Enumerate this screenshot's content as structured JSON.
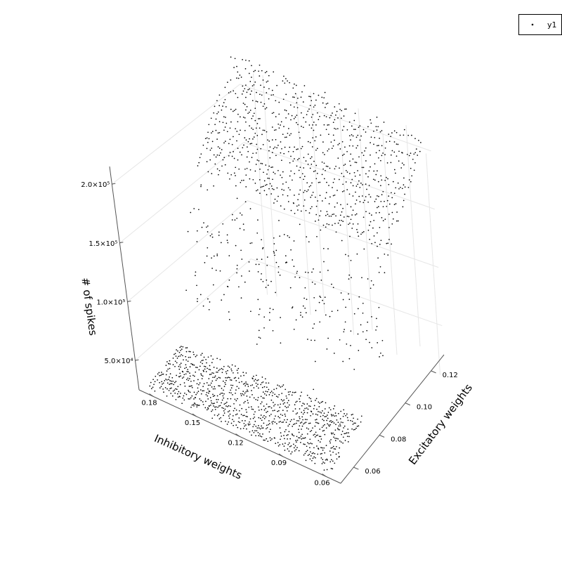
{
  "chart_data": {
    "type": "scatter",
    "title": "",
    "xlabel": "Inhibitory weights",
    "ylabel": "Excitatory weights",
    "zlabel": "# of spikes",
    "x_ticks": [
      "0.18",
      "0.15",
      "0.12",
      "0.09",
      "0.06"
    ],
    "y_ticks": [
      "0.06",
      "0.08",
      "0.10",
      "0.12"
    ],
    "z_ticks": [
      "5.0×10⁴",
      "1.0×10⁵",
      "1.5×10⁵",
      "2.0×10⁵"
    ],
    "xlim": [
      0.05,
      0.19
    ],
    "ylim": [
      0.05,
      0.13
    ],
    "zlim": [
      25000,
      215000
    ],
    "grid": true,
    "legend_position": "top-right",
    "marker_color": "#000000",
    "series": [
      {
        "name": "y1",
        "surface": "two-regime spike-count surface: low plateau (~2.5×10⁴–6×10⁴ spikes) that rises toward small inhibitory weights, and a high plateau (~1.4×10⁵–2.1×10⁵ spikes) spanning larger excitatory weights",
        "points": [
          {
            "x": 0.18,
            "y": 0.055,
            "z": 30000
          },
          {
            "x": 0.15,
            "y": 0.06,
            "z": 33000
          },
          {
            "x": 0.12,
            "y": 0.07,
            "z": 40000
          },
          {
            "x": 0.09,
            "y": 0.075,
            "z": 48000
          },
          {
            "x": 0.06,
            "y": 0.06,
            "z": 28000
          },
          {
            "x": 0.15,
            "y": 0.095,
            "z": 95000
          },
          {
            "x": 0.12,
            "y": 0.1,
            "z": 155000
          },
          {
            "x": 0.09,
            "y": 0.11,
            "z": 185000
          },
          {
            "x": 0.06,
            "y": 0.12,
            "z": 205000
          },
          {
            "x": 0.18,
            "y": 0.125,
            "z": 210000
          }
        ]
      }
    ]
  }
}
